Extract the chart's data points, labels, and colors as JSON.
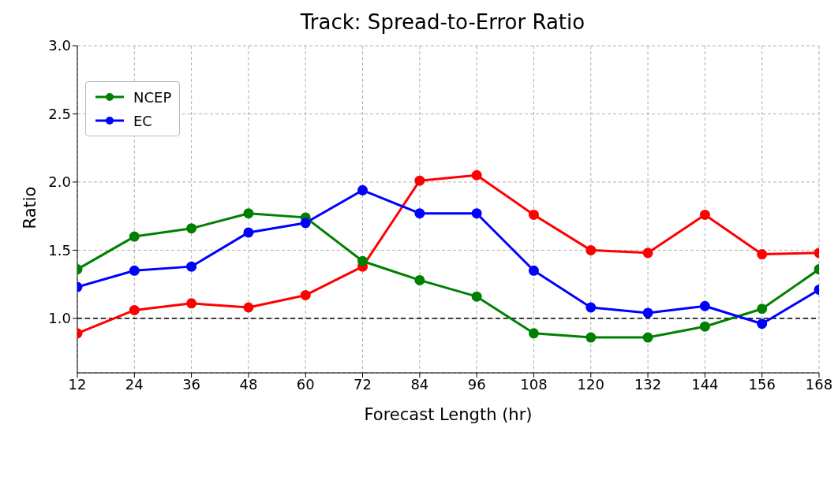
{
  "chart_data": {
    "type": "line",
    "title": "Track: Spread-to-Error Ratio",
    "xlabel": "Forecast Length (hr)",
    "ylabel": "Ratio",
    "x": [
      12,
      24,
      36,
      48,
      60,
      72,
      84,
      96,
      108,
      120,
      132,
      144,
      156,
      168
    ],
    "series": [
      {
        "color": "#ff0000",
        "values": [
          0.89,
          1.06,
          1.11,
          1.08,
          1.17,
          1.38,
          2.01,
          2.05,
          1.76,
          1.5,
          1.48,
          1.76,
          1.47,
          1.48
        ]
      },
      {
        "name": "NCEP",
        "color": "#008000",
        "values": [
          1.36,
          1.6,
          1.66,
          1.77,
          1.74,
          1.42,
          1.28,
          1.16,
          0.89,
          0.86,
          0.86,
          0.94,
          1.07,
          1.36
        ]
      },
      {
        "name": "EC",
        "color": "#0000ff",
        "values": [
          1.23,
          1.35,
          1.38,
          1.63,
          1.7,
          1.94,
          1.77,
          1.77,
          1.35,
          1.08,
          1.04,
          1.09,
          0.96,
          1.21
        ]
      }
    ],
    "xlim": [
      12,
      168
    ],
    "xticks": [
      12,
      24,
      36,
      48,
      60,
      72,
      84,
      96,
      108,
      120,
      132,
      144,
      156,
      168
    ],
    "ylim": [
      0.6,
      3.0
    ],
    "yticks": [
      {
        "value": 1.0,
        "label": "1.0"
      },
      {
        "value": 1.5,
        "label": "1.5"
      },
      {
        "value": 2.0,
        "label": "2.0"
      },
      {
        "value": 2.5,
        "label": "2.5"
      },
      {
        "value": 3.0,
        "label": "3.0"
      }
    ],
    "ref_lines": [
      {
        "axis": "y",
        "value": 1.0,
        "color": "#000000",
        "line_style": "dashed"
      }
    ],
    "grid": true,
    "legend": "top left",
    "marker": "circle",
    "line_style": "solid"
  }
}
